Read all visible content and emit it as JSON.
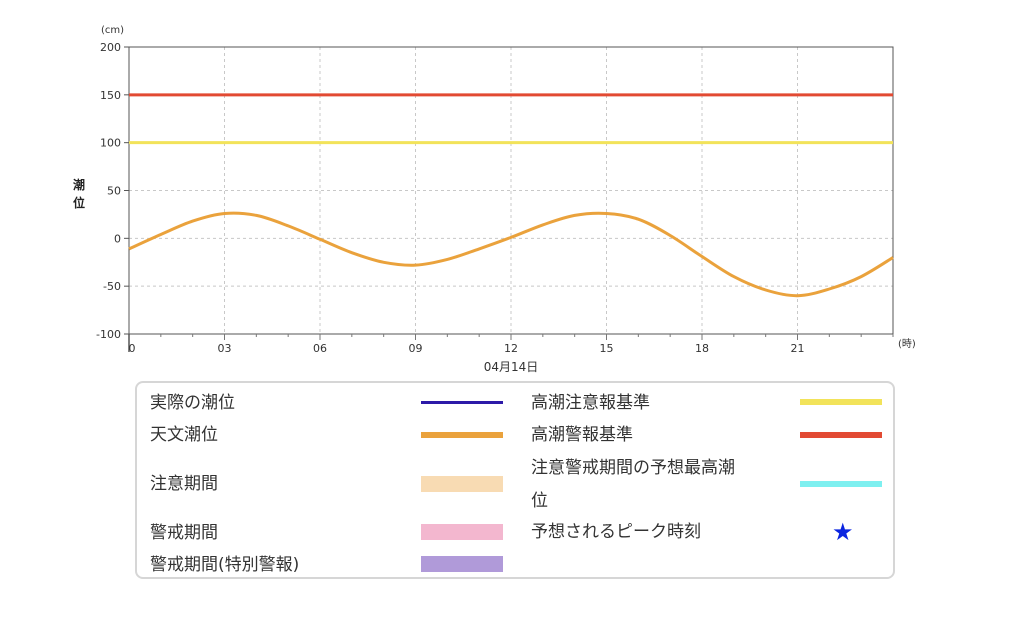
{
  "chart_data": {
    "type": "line",
    "x_unit": "(時)",
    "y_unit": "(cm)",
    "ylabel_chars": [
      "潮",
      "位"
    ],
    "date_label": "04月14日",
    "xlim": [
      0,
      24
    ],
    "ylim": [
      -100,
      200
    ],
    "x_ticks": [
      {
        "value": 0,
        "label": "0"
      },
      {
        "value": 3,
        "label": "03"
      },
      {
        "value": 6,
        "label": "06"
      },
      {
        "value": 9,
        "label": "09"
      },
      {
        "value": 12,
        "label": "12"
      },
      {
        "value": 15,
        "label": "15"
      },
      {
        "value": 18,
        "label": "18"
      },
      {
        "value": 21,
        "label": "21"
      }
    ],
    "y_ticks": [
      {
        "value": 200,
        "label": "200"
      },
      {
        "value": 150,
        "label": "150"
      },
      {
        "value": 100,
        "label": "100"
      },
      {
        "value": 50,
        "label": "50"
      },
      {
        "value": 0,
        "label": "0"
      },
      {
        "value": -50,
        "label": "-50"
      },
      {
        "value": -100,
        "label": "-100"
      }
    ],
    "grid": true,
    "thresholds": [
      {
        "name": "高潮警報基準",
        "value": 150,
        "color": "#e24a33"
      },
      {
        "name": "高潮注意報基準",
        "value": 100,
        "color": "#f2e35a"
      }
    ],
    "series": [
      {
        "name": "天文潮位",
        "color": "#eaa23c",
        "points": [
          [
            0,
            -11
          ],
          [
            1,
            4
          ],
          [
            2,
            18
          ],
          [
            3,
            26
          ],
          [
            4,
            24
          ],
          [
            5,
            13
          ],
          [
            6,
            -1
          ],
          [
            7,
            -15
          ],
          [
            8,
            -25
          ],
          [
            9,
            -28
          ],
          [
            10,
            -22
          ],
          [
            11,
            -11
          ],
          [
            12,
            1
          ],
          [
            13,
            14
          ],
          [
            14,
            24
          ],
          [
            15,
            26
          ],
          [
            16,
            20
          ],
          [
            17,
            3
          ],
          [
            18,
            -19
          ],
          [
            19,
            -40
          ],
          [
            20,
            -54
          ],
          [
            21,
            -60
          ],
          [
            22,
            -53
          ],
          [
            23,
            -40
          ],
          [
            24,
            -20
          ]
        ]
      }
    ]
  },
  "legend": {
    "left_items": [
      {
        "label": "実際の潮位",
        "kind": "line",
        "color": "#2d1aa8"
      },
      {
        "label": "天文潮位",
        "kind": "thick",
        "color": "#eaa23c"
      },
      {
        "label": "注意期間",
        "kind": "band",
        "color": "#f8dbb3"
      },
      {
        "label": "警戒期間",
        "kind": "band",
        "color": "#f3b7cf"
      },
      {
        "label": "警戒期間(特別警報)",
        "kind": "band",
        "color": "#b09ad9"
      }
    ],
    "right_items": [
      {
        "label": "高潮注意報基準",
        "kind": "thick",
        "color": "#f2e35a"
      },
      {
        "label": "高潮警報基準",
        "kind": "thick",
        "color": "#e24a33"
      },
      {
        "label_line1": "注意警戒期間の予想最高潮",
        "label_line2": "位",
        "kind": "thick",
        "color": "#7ef0f0"
      },
      {
        "label": "予想されるピーク時刻",
        "kind": "star",
        "symbol": "★",
        "color": "#0a24e0"
      }
    ]
  }
}
